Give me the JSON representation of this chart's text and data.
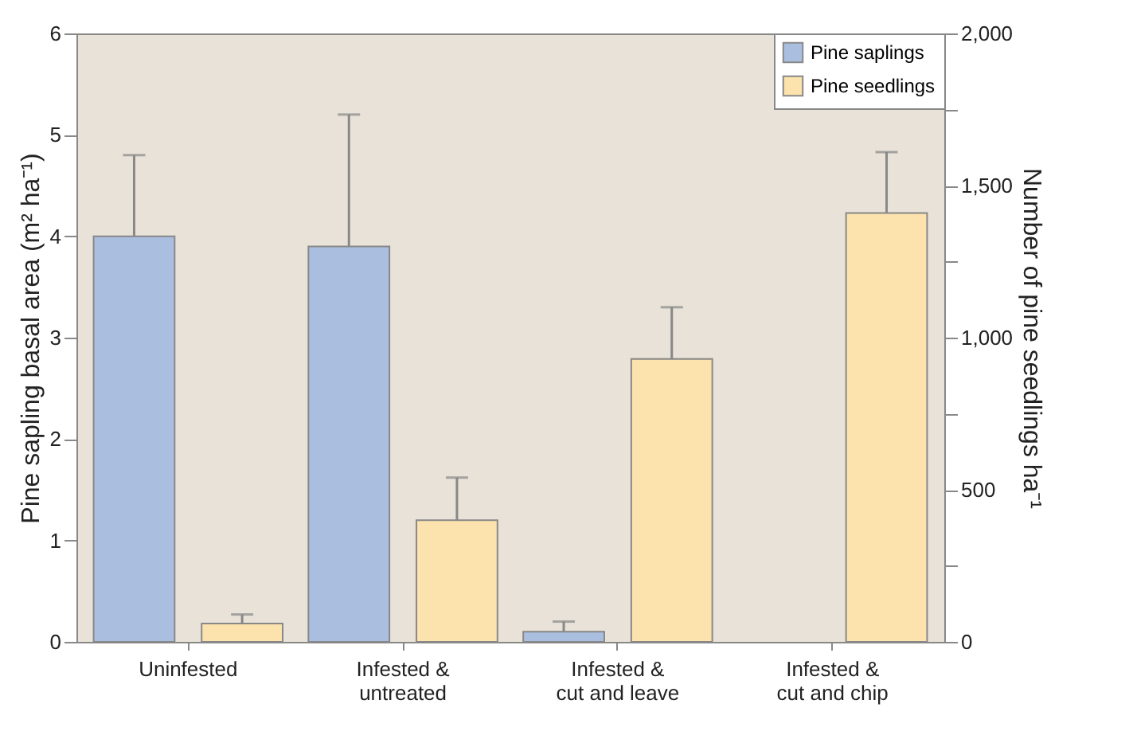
{
  "chart_data": {
    "type": "bar",
    "categories": [
      "Uninfested",
      "Infested &\nuntreated",
      "Infested &\ncut and leave",
      "Infested &\ncut and chip"
    ],
    "ylabel": "Pine sapling basal area (m² ha⁻¹)",
    "y2label": "Number of pine seedlings ha⁻¹",
    "series": [
      {
        "name": "Pine saplings",
        "color": "#aabfe0",
        "values": [
          4.0,
          3.9,
          0.1,
          null
        ],
        "errors": [
          [
            4.0,
            4.8
          ],
          [
            3.9,
            5.2
          ],
          [
            0.1,
            0.2
          ],
          null
        ]
      },
      {
        "name": "Pine seedlings",
        "color": "#fce3ad",
        "axis": "y2",
        "values": [
          60,
          400,
          930,
          1410
        ],
        "errors": [
          [
            60,
            90
          ],
          [
            400,
            540
          ],
          [
            930,
            1100
          ],
          [
            1410,
            1610
          ]
        ]
      }
    ],
    "ylim": [
      0,
      6
    ],
    "yticks": [
      0,
      1,
      2,
      3,
      4,
      5,
      6
    ],
    "y2lim": [
      0,
      2000
    ],
    "y2ticks": [
      {
        "value": 0,
        "label": "0"
      },
      {
        "value": 250,
        "label": null
      },
      {
        "value": 500,
        "label": "500"
      },
      {
        "value": 750,
        "label": null
      },
      {
        "value": 1000,
        "label": "1,000"
      },
      {
        "value": 1250,
        "label": null
      },
      {
        "value": 1500,
        "label": "1,500"
      },
      {
        "value": 1750,
        "label": null
      },
      {
        "value": 2000,
        "label": "2,000"
      }
    ],
    "legend": "top right",
    "grid": false
  }
}
